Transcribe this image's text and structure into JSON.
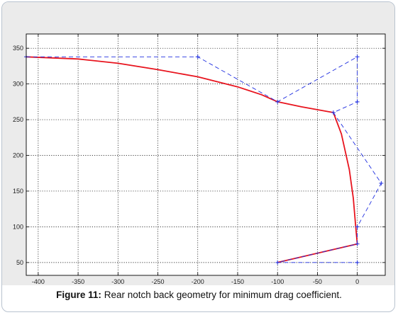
{
  "caption": {
    "label": "Figure 11:",
    "text": " Rear notch back geometry for minimum drag coefficient."
  },
  "chart_data": {
    "type": "line",
    "title": "",
    "xlabel": "",
    "ylabel": "",
    "xlim": [
      -415,
      35
    ],
    "ylim": [
      32,
      370
    ],
    "x_ticks": [
      -400,
      -350,
      -300,
      -250,
      -200,
      -150,
      -100,
      -50,
      0
    ],
    "x_tick_labels": [
      "-400",
      "-350",
      "-300",
      "-250",
      "-200",
      "-150",
      "-100",
      "-50",
      "0"
    ],
    "y_ticks": [
      50,
      100,
      150,
      200,
      250,
      300,
      350
    ],
    "y_tick_labels": [
      "50",
      "100",
      "150",
      "200",
      "250",
      "300",
      "350"
    ],
    "grid": true,
    "series": [
      {
        "style": "curve",
        "color": "#e8141e",
        "x": [
          -415,
          -350,
          -300,
          -250,
          -200,
          -150,
          -120,
          -100,
          -70,
          -30,
          -20,
          -10,
          -5,
          -2,
          0,
          -100
        ],
        "y": [
          338,
          335,
          329,
          320,
          310,
          296,
          285,
          275,
          268,
          260,
          230,
          180,
          140,
          100,
          76,
          50
        ]
      },
      {
        "style": "control-polygon",
        "color": "#1f2ee0",
        "marker": "+",
        "x": [
          -415,
          -200,
          -100,
          0,
          0,
          -30,
          30,
          0,
          0,
          -100,
          0
        ],
        "y": [
          338,
          338,
          275,
          338,
          275,
          260,
          161,
          100,
          76,
          50,
          50
        ]
      }
    ]
  },
  "colors": {
    "plot_background": "#ebebeb",
    "axes_background": "#ffffff",
    "grid": "#000000",
    "curve": "#e8141e",
    "control_polygon": "#1f2ee0"
  }
}
